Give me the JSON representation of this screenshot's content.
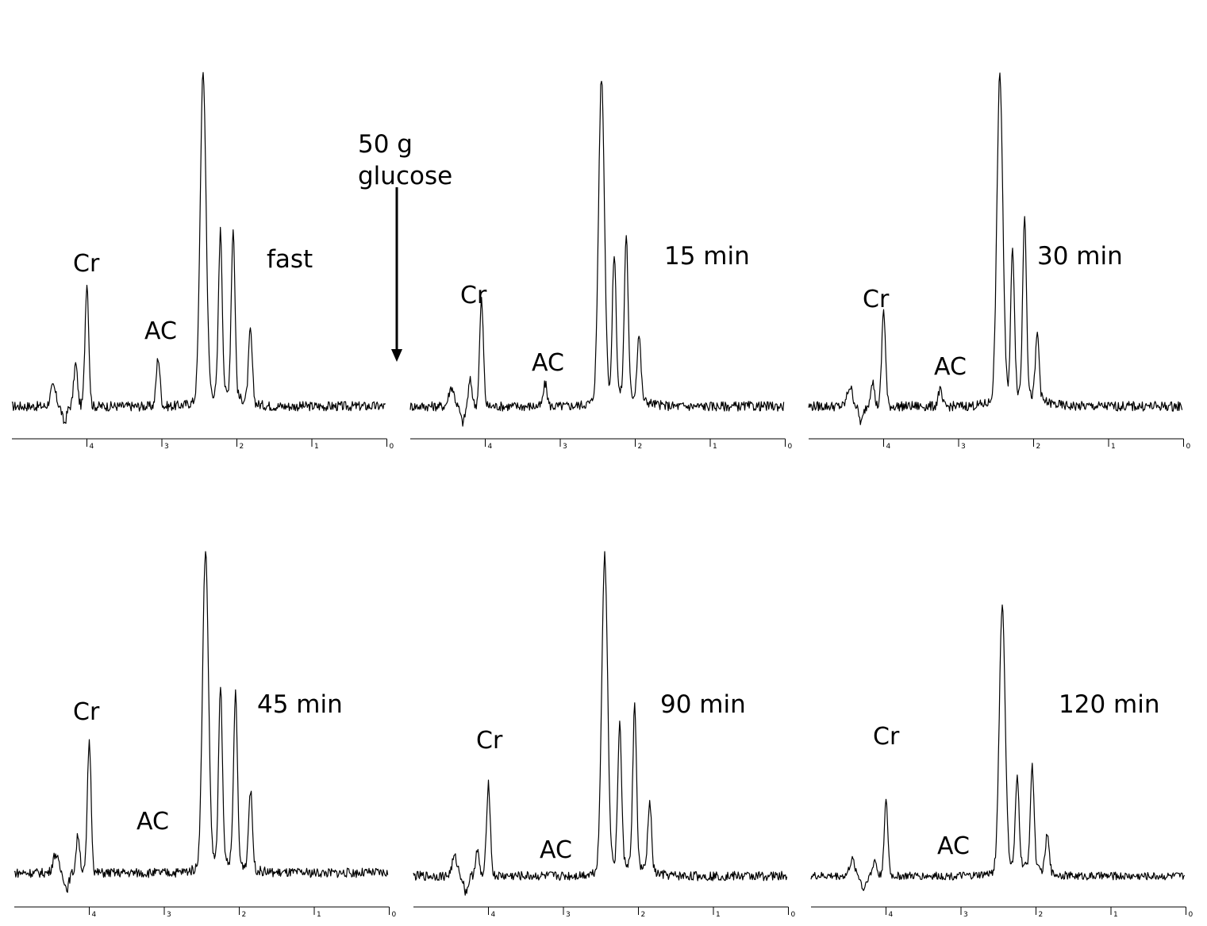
{
  "chart_data": {
    "type": "line",
    "x_axis": {
      "ticks": [
        "4",
        "3",
        "2",
        "1",
        "0"
      ]
    },
    "annotation": {
      "text_line1": "50 g",
      "text_line2": "glucose",
      "arrow": "down"
    },
    "panels": [
      {
        "time_label": "fast",
        "labels": [
          "Cr",
          "AC"
        ],
        "peaks": [
          {
            "x": 4.0,
            "h": 0.38
          },
          {
            "x": 4.15,
            "h": 0.13
          },
          {
            "x": 3.05,
            "h": 0.15
          },
          {
            "x": 2.45,
            "h": 1.0
          },
          {
            "x": 2.22,
            "h": 0.5
          },
          {
            "x": 2.05,
            "h": 0.51
          },
          {
            "x": 1.82,
            "h": 0.22
          }
        ]
      },
      {
        "time_label": "15 min",
        "labels": [
          "Cr",
          "AC"
        ],
        "peaks": [
          {
            "x": 4.05,
            "h": 0.33
          },
          {
            "x": 4.2,
            "h": 0.08
          },
          {
            "x": 3.2,
            "h": 0.07
          },
          {
            "x": 2.45,
            "h": 1.0
          },
          {
            "x": 2.28,
            "h": 0.44
          },
          {
            "x": 2.12,
            "h": 0.5
          },
          {
            "x": 1.95,
            "h": 0.2
          }
        ]
      },
      {
        "time_label": "30 min",
        "labels": [
          "Cr",
          "AC"
        ],
        "peaks": [
          {
            "x": 4.0,
            "h": 0.3
          },
          {
            "x": 4.15,
            "h": 0.08
          },
          {
            "x": 3.25,
            "h": 0.05
          },
          {
            "x": 2.45,
            "h": 1.0
          },
          {
            "x": 2.28,
            "h": 0.45
          },
          {
            "x": 2.12,
            "h": 0.56
          },
          {
            "x": 1.95,
            "h": 0.2
          }
        ]
      },
      {
        "time_label": "45 min",
        "labels": [
          "Cr",
          "AC"
        ],
        "peaks": [
          {
            "x": 4.0,
            "h": 0.42
          },
          {
            "x": 4.15,
            "h": 0.12
          },
          {
            "x": 2.45,
            "h": 1.0
          },
          {
            "x": 2.25,
            "h": 0.55
          },
          {
            "x": 2.05,
            "h": 0.54
          },
          {
            "x": 1.85,
            "h": 0.25
          }
        ]
      },
      {
        "time_label": "90 min",
        "labels": [
          "Cr",
          "AC"
        ],
        "peaks": [
          {
            "x": 4.0,
            "h": 0.3
          },
          {
            "x": 4.15,
            "h": 0.08
          },
          {
            "x": 2.45,
            "h": 1.0
          },
          {
            "x": 2.25,
            "h": 0.45
          },
          {
            "x": 2.05,
            "h": 0.51
          },
          {
            "x": 1.85,
            "h": 0.22
          }
        ]
      },
      {
        "time_label": "120 min",
        "labels": [
          "Cr",
          "AC"
        ],
        "peaks": [
          {
            "x": 4.0,
            "h": 0.28
          },
          {
            "x": 4.15,
            "h": 0.06
          },
          {
            "x": 2.45,
            "h": 1.0
          },
          {
            "x": 2.25,
            "h": 0.33
          },
          {
            "x": 2.05,
            "h": 0.38
          },
          {
            "x": 1.85,
            "h": 0.14
          }
        ]
      }
    ]
  }
}
